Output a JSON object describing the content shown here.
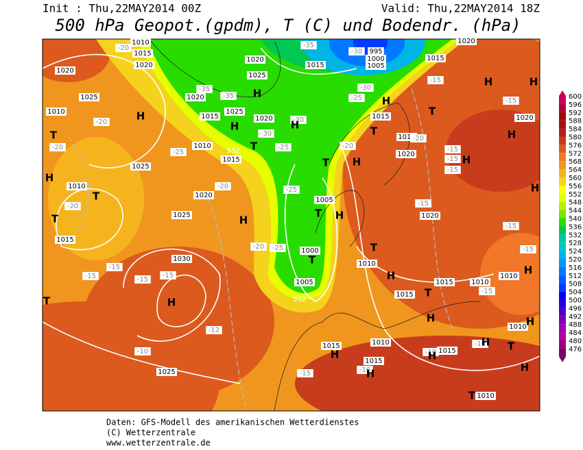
{
  "header": {
    "init": "Init : Thu,22MAY2014 00Z",
    "valid": "Valid: Thu,22MAY2014 18Z",
    "title": "500 hPa Geopot.(gpdm), T (C) und Bodendr. (hPa)"
  },
  "colorbar": {
    "ticks": [
      600,
      596,
      592,
      588,
      584,
      580,
      576,
      572,
      568,
      564,
      560,
      556,
      552,
      548,
      544,
      540,
      536,
      532,
      528,
      524,
      520,
      516,
      512,
      508,
      504,
      500,
      496,
      492,
      488,
      484,
      480,
      476
    ],
    "colors": [
      "#c8005a",
      "#b4003c",
      "#a00a0a",
      "#a01414",
      "#b41e1e",
      "#c83c1e",
      "#dc5a1e",
      "#f07828",
      "#f0961e",
      "#f5b41e",
      "#f5d21e",
      "#ffff00",
      "#e6ff00",
      "#b4f000",
      "#78e600",
      "#28dc00",
      "#00c850",
      "#00c8a0",
      "#00c8c8",
      "#00b4e6",
      "#0096ff",
      "#0078ff",
      "#005aff",
      "#003cff",
      "#0000ff",
      "#2800dc",
      "#5000c8",
      "#7800b4",
      "#a000b4",
      "#b400a0",
      "#a00078",
      "#780064"
    ]
  },
  "map": {
    "isobar_labels": [
      "1010",
      "1015",
      "1020",
      "1020",
      "1025",
      "1010",
      "1025",
      "1010",
      "1020",
      "1015",
      "1025",
      "1030",
      "1025",
      "1020",
      "1015",
      "1025",
      "1020",
      "1025",
      "1015",
      "1020",
      "1010",
      "1015",
      "1015",
      "1015",
      "1020",
      "1020",
      "1015",
      "1005",
      "1000",
      "1005",
      "1010",
      "1015",
      "1015",
      "1010",
      "1010",
      "1020",
      "1015",
      "1015",
      "1010",
      "1015",
      "1010",
      "1010",
      "1020",
      "995",
      "1000",
      "1005"
    ],
    "temperature_labels": [
      "-20",
      "-35",
      "-30",
      "-30",
      "-25",
      "-35",
      "-35",
      "-30",
      "-30",
      "-25",
      "-25",
      "-20",
      "-20",
      "-25",
      "-25",
      "-20",
      "-15",
      "-15",
      "-15",
      "-15",
      "-15",
      "-15",
      "-15",
      "-15",
      "-20",
      "-20",
      "-20",
      "-15",
      "-15",
      "-15",
      "-15",
      "-15",
      "-10",
      "-15",
      "-10",
      "-10",
      "-10",
      "-12",
      "-20"
    ],
    "pressure_centers": [
      "H",
      "T",
      "H",
      "T",
      "T",
      "T",
      "H",
      "H",
      "H",
      "H",
      "T",
      "H",
      "T",
      "H",
      "T",
      "H",
      "H",
      "H",
      "T",
      "H",
      "H",
      "T",
      "H",
      "T",
      "T",
      "H",
      "T",
      "H",
      "H",
      "T",
      "H",
      "H",
      "H",
      "T",
      "H",
      "H",
      "H",
      "H"
    ],
    "height_labels": [
      "552",
      "552"
    ]
  },
  "footer": {
    "source": "Daten: GFS-Modell des amerikanischen Wetterdienstes",
    "copyright": "(C) Wetterzentrale",
    "url": "www.wetterzentrale.de"
  }
}
